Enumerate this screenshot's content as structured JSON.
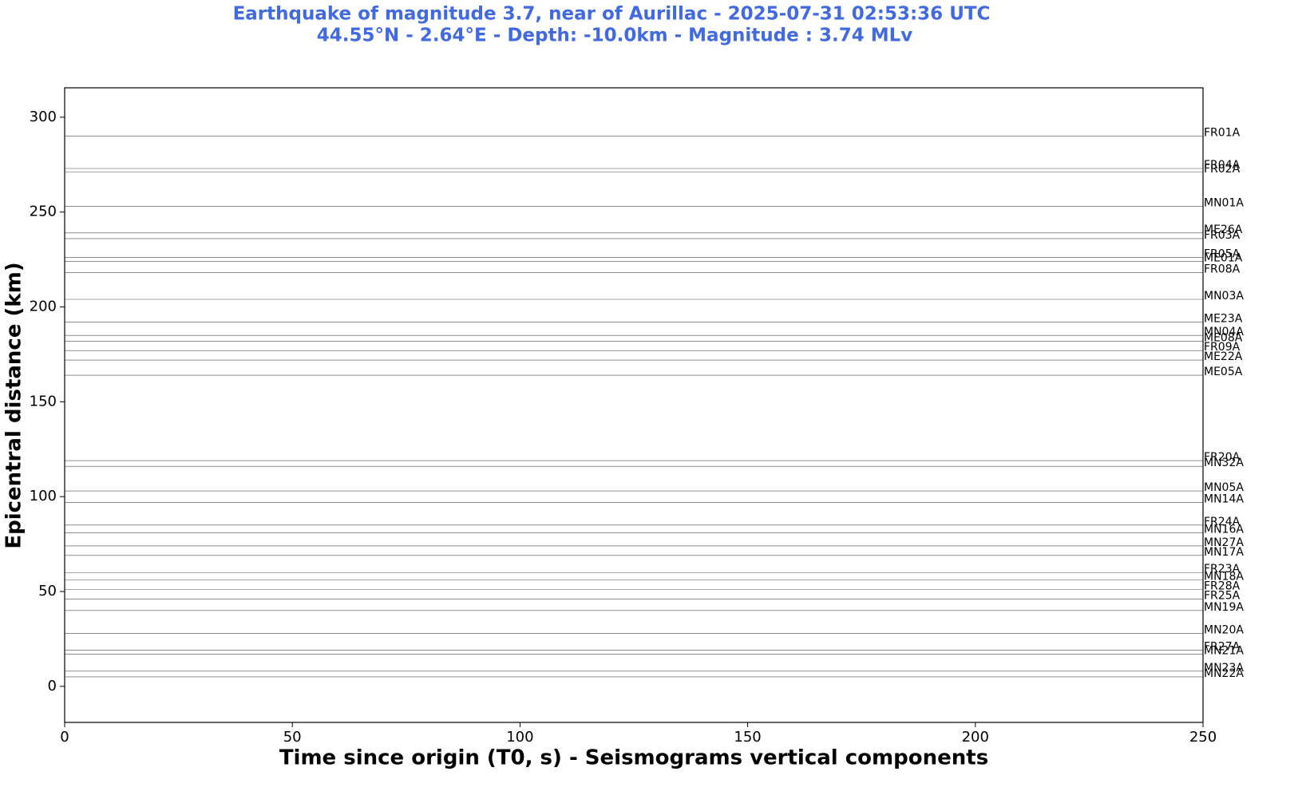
{
  "chart_data": {
    "type": "seismogram",
    "title": "Earthquake of magnitude 3.7, near of Aurillac   -   2025-07-31 02:53:36  UTC",
    "subtitle": "44.55°N  -  2.64°E  -   Depth: -10.0km  -   Magnitude : 3.74 MLv",
    "x_label": "Time since origin (T0, s) - Seismograms vertical components",
    "y_label": "Epicentral distance (km)",
    "xlim": [
      0,
      250
    ],
    "xticks": [
      0,
      50,
      100,
      150,
      200,
      250
    ],
    "ylim": [
      -19,
      315.5
    ],
    "yticks": [
      0,
      50,
      100,
      150,
      200,
      250,
      300
    ],
    "color": "#000000",
    "title_color": "#4169e1",
    "stations": [
      {
        "name": "FR01A",
        "distance": 290
      },
      {
        "name": "FR04A",
        "distance": 273
      },
      {
        "name": "FR02A",
        "distance": 271
      },
      {
        "name": "MN01A",
        "distance": 253
      },
      {
        "name": "ME26A",
        "distance": 239
      },
      {
        "name": "FR03A",
        "distance": 236
      },
      {
        "name": "FR05A",
        "distance": 226
      },
      {
        "name": "ME01A",
        "distance": 224
      },
      {
        "name": "FR08A",
        "distance": 218
      },
      {
        "name": "MN03A",
        "distance": 204
      },
      {
        "name": "ME23A",
        "distance": 192
      },
      {
        "name": "MN04A",
        "distance": 185
      },
      {
        "name": "ME08A",
        "distance": 182
      },
      {
        "name": "FR09A",
        "distance": 177
      },
      {
        "name": "ME22A",
        "distance": 172
      },
      {
        "name": "ME05A",
        "distance": 164
      },
      {
        "name": "FR20A",
        "distance": 119
      },
      {
        "name": "MN32A",
        "distance": 116
      },
      {
        "name": "MN05A",
        "distance": 103
      },
      {
        "name": "MN14A",
        "distance": 97
      },
      {
        "name": "FR24A",
        "distance": 85
      },
      {
        "name": "MN16A",
        "distance": 81
      },
      {
        "name": "MN27A",
        "distance": 74
      },
      {
        "name": "MN17A",
        "distance": 69
      },
      {
        "name": "FR23A",
        "distance": 60
      },
      {
        "name": "MN18A",
        "distance": 56
      },
      {
        "name": "FR28A",
        "distance": 51
      },
      {
        "name": "FR25A",
        "distance": 46
      },
      {
        "name": "MN19A",
        "distance": 40
      },
      {
        "name": "MN20A",
        "distance": 28
      },
      {
        "name": "FR27A",
        "distance": 19
      },
      {
        "name": "MN21A",
        "distance": 17
      },
      {
        "name": "MN23A",
        "distance": 8
      },
      {
        "name": "MN22A",
        "distance": 5
      }
    ]
  }
}
